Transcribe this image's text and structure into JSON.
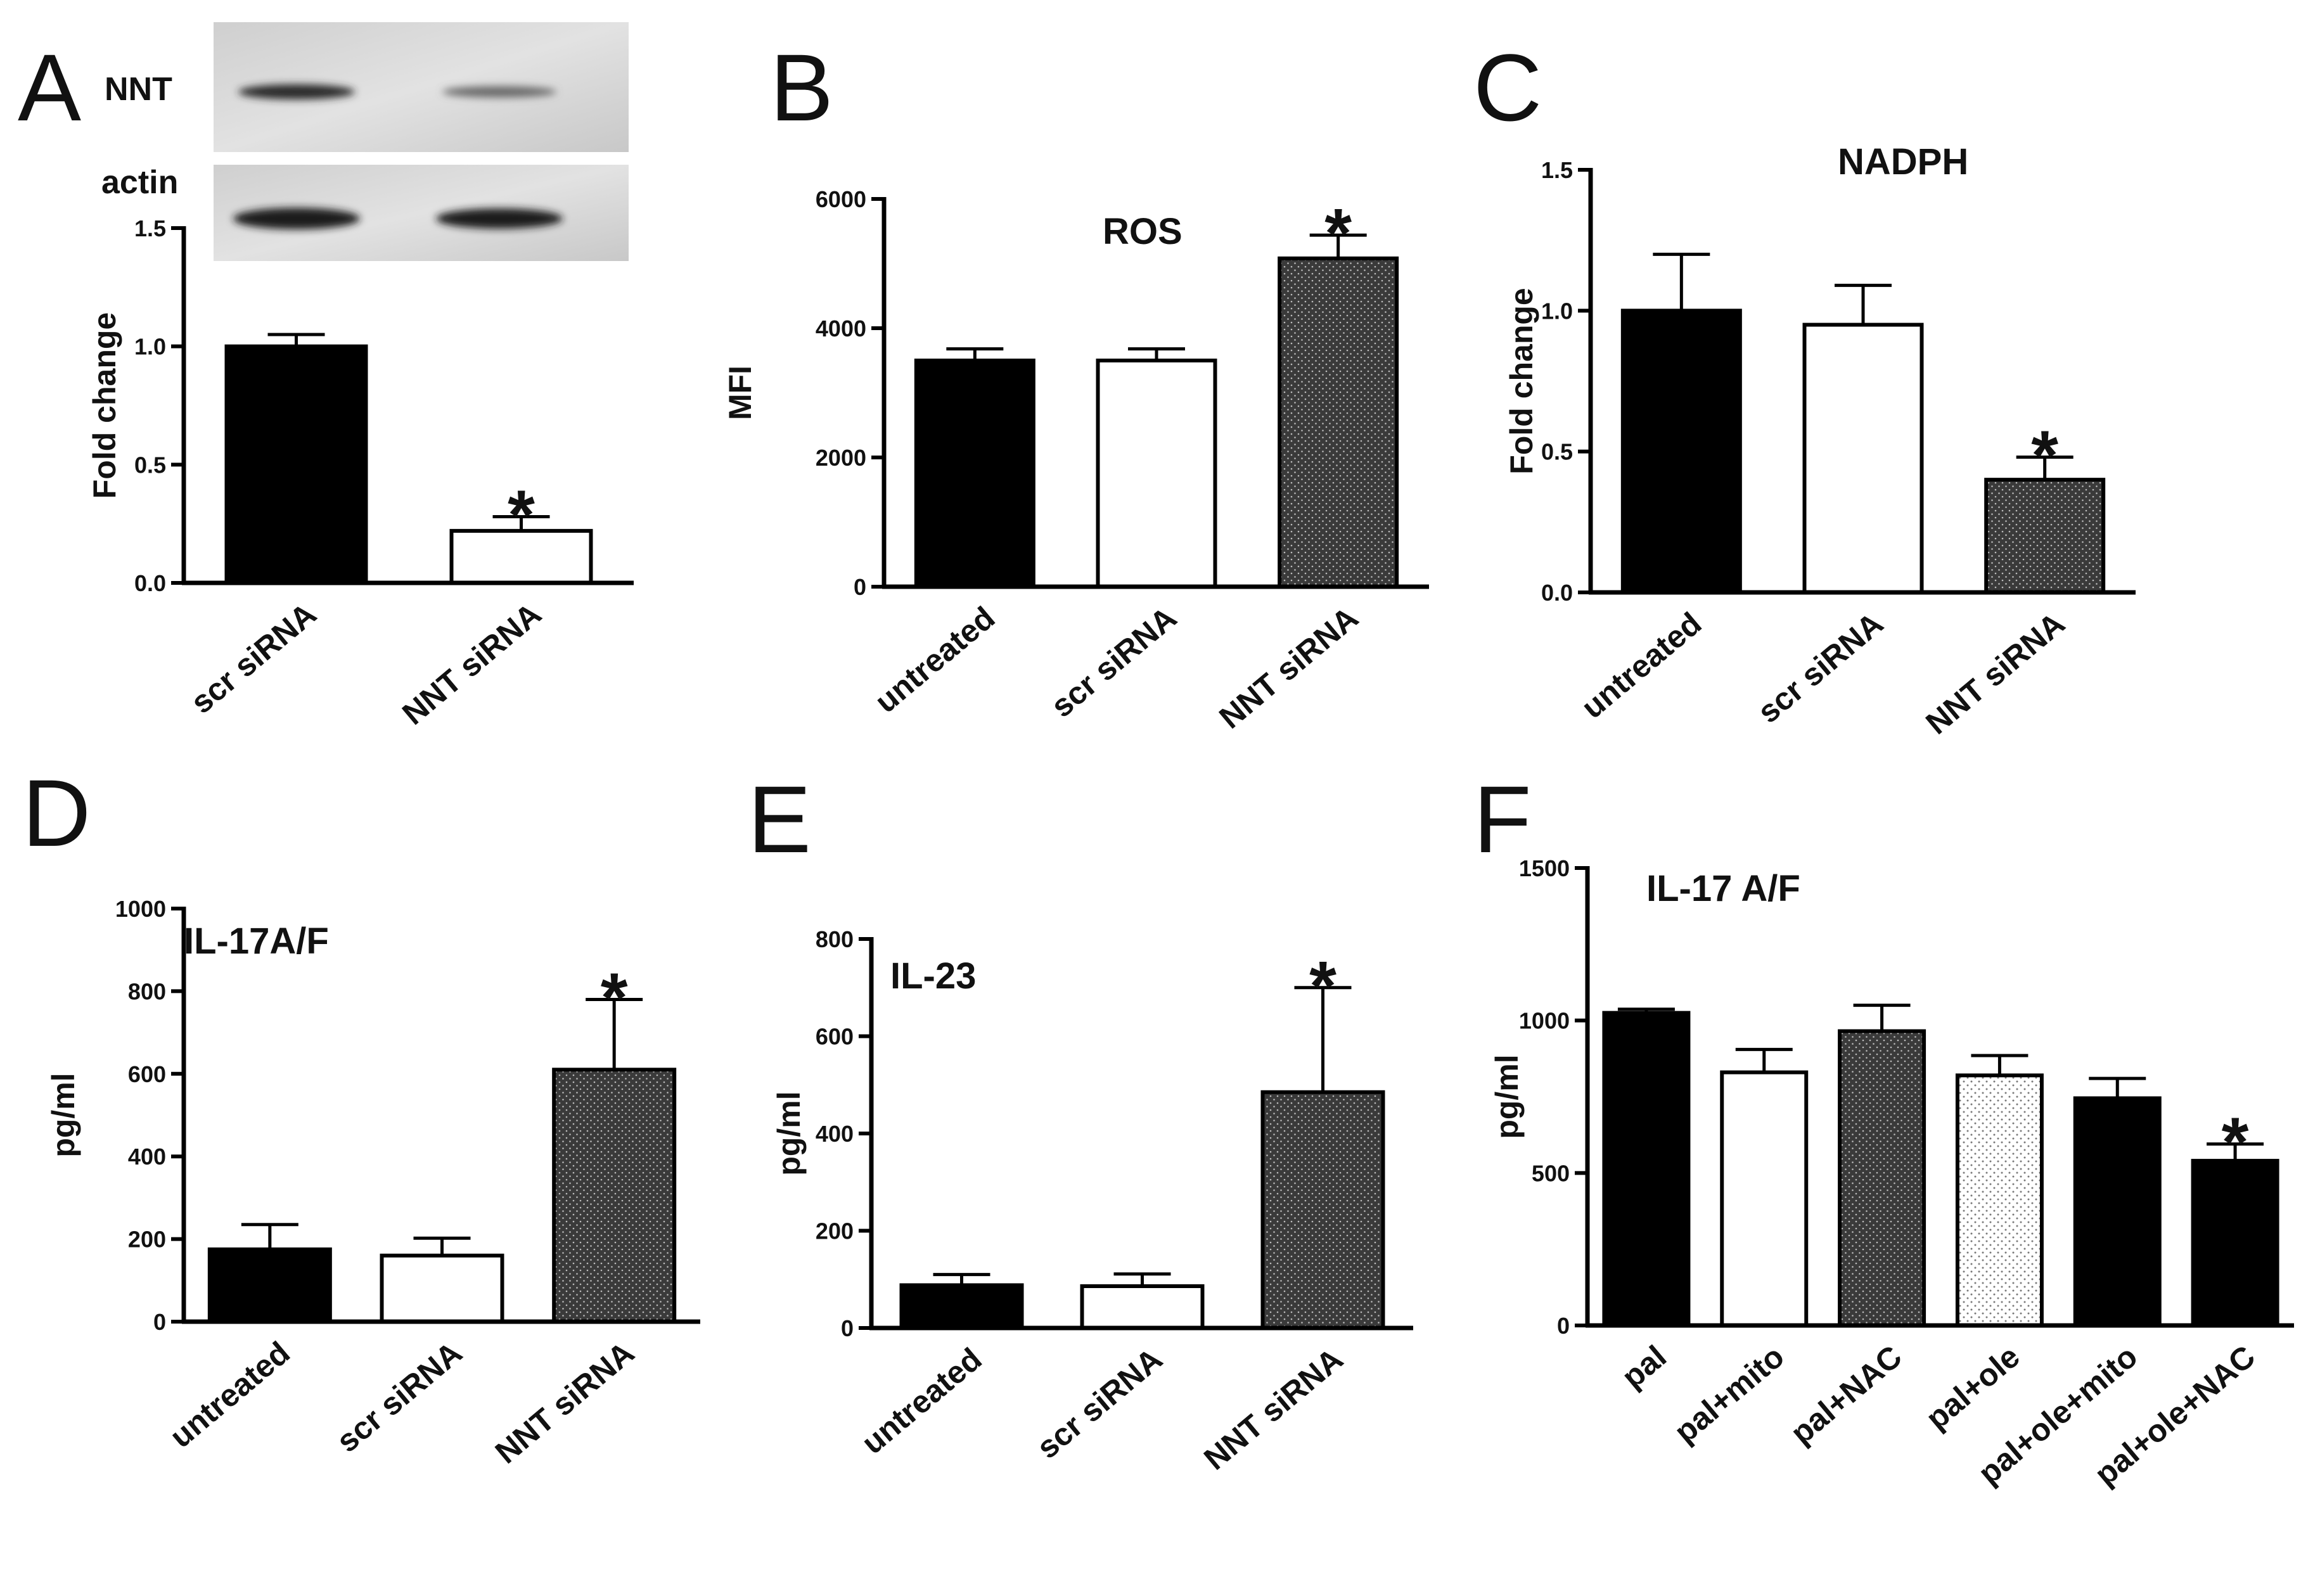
{
  "figure": {
    "colors": {
      "black": "#000000",
      "white": "#ffffff",
      "dark_dotted": "#3a3a3a",
      "light_dotted": "#f4f4f4"
    }
  },
  "chart_data": [
    {
      "panel": "A",
      "type": "bar",
      "title": "",
      "blot": {
        "label_top": "NNT",
        "label_bottom": "actin"
      },
      "ylabel": "Fold change",
      "xlabel": "",
      "categories": [
        "scr siRNA",
        "NNT siRNA"
      ],
      "values": [
        1.0,
        0.22
      ],
      "errors": [
        0.05,
        0.06
      ],
      "fills": [
        "black",
        "white"
      ],
      "significant": [
        false,
        true
      ],
      "significance_marker": "*",
      "ylim": [
        0,
        1.5
      ],
      "yticks": [
        "0.0",
        "0.5",
        "1.0",
        "1.5"
      ]
    },
    {
      "panel": "B",
      "type": "bar",
      "title": "ROS",
      "ylabel": "MFI",
      "xlabel": "",
      "categories": [
        "untreated",
        "scr siRNA",
        "NNT siRNA"
      ],
      "values": [
        3500,
        3500,
        5080
      ],
      "errors": [
        180,
        180,
        360
      ],
      "fills": [
        "black",
        "white",
        "dark_dotted"
      ],
      "significant": [
        false,
        false,
        true
      ],
      "significance_marker": "*",
      "ylim": [
        0,
        6000
      ],
      "yticks": [
        "0",
        "2000",
        "4000",
        "6000"
      ]
    },
    {
      "panel": "C",
      "type": "bar",
      "title": "NADPH",
      "ylabel": "Fold change",
      "xlabel": "",
      "categories": [
        "untreated",
        "scr siRNA",
        "NNT siRNA"
      ],
      "values": [
        1.0,
        0.95,
        0.4
      ],
      "errors": [
        0.2,
        0.14,
        0.08
      ],
      "fills": [
        "black",
        "white",
        "dark_dotted"
      ],
      "significant": [
        false,
        false,
        true
      ],
      "significance_marker": "*",
      "ylim": [
        0,
        1.5
      ],
      "yticks": [
        "0.0",
        "0.5",
        "1.0",
        "1.5"
      ]
    },
    {
      "panel": "D",
      "type": "bar",
      "title": "IL-17A/F",
      "ylabel": "pg/ml",
      "xlabel": "",
      "categories": [
        "untreated",
        "scr siRNA",
        "NNT siRNA"
      ],
      "values": [
        175,
        160,
        610
      ],
      "errors": [
        60,
        42,
        170
      ],
      "fills": [
        "black",
        "white",
        "dark_dotted"
      ],
      "significant": [
        false,
        false,
        true
      ],
      "significance_marker": "*",
      "ylim": [
        0,
        1000
      ],
      "yticks": [
        "0",
        "200",
        "400",
        "600",
        "800",
        "1000"
      ]
    },
    {
      "panel": "E",
      "type": "bar",
      "title": "IL-23",
      "ylabel": "pg/ml",
      "xlabel": "",
      "categories": [
        "untreated",
        "scr siRNA",
        "NNT siRNA"
      ],
      "values": [
        88,
        86,
        485
      ],
      "errors": [
        22,
        25,
        215
      ],
      "fills": [
        "black",
        "white",
        "dark_dotted"
      ],
      "significant": [
        false,
        false,
        true
      ],
      "significance_marker": "*",
      "ylim": [
        0,
        800
      ],
      "yticks": [
        "0",
        "200",
        "400",
        "600",
        "800"
      ]
    },
    {
      "panel": "F",
      "type": "bar",
      "title": "IL-17 A/F",
      "ylabel": "pg/ml",
      "xlabel": "",
      "categories": [
        "pal",
        "pal+mito",
        "pal+NAC",
        "pal+ole",
        "pal+ole+mito",
        "pal+ole+NAC"
      ],
      "values": [
        1025,
        830,
        965,
        820,
        745,
        540
      ],
      "errors": [
        12,
        75,
        85,
        65,
        65,
        55
      ],
      "fills": [
        "black",
        "white",
        "dark_dotted",
        "light_dotted",
        "black",
        "black"
      ],
      "significant": [
        false,
        false,
        false,
        false,
        false,
        true
      ],
      "significance_marker": "*",
      "ylim": [
        0,
        1500
      ],
      "yticks": [
        "0",
        "500",
        "1000",
        "1500"
      ]
    }
  ]
}
